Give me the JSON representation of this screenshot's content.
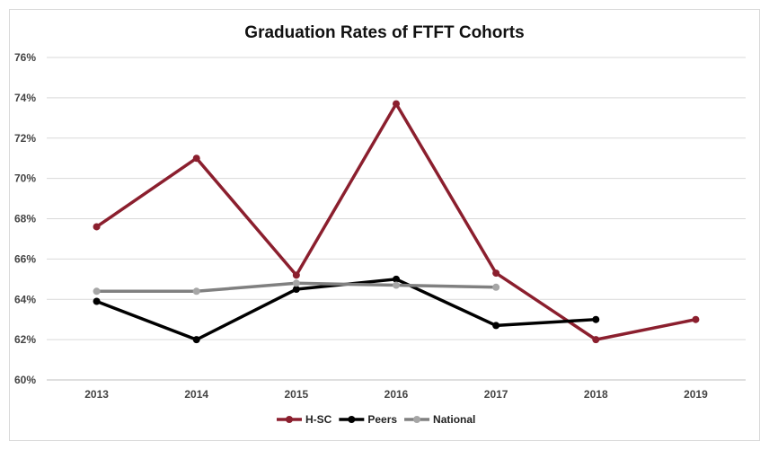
{
  "chart_data": {
    "type": "line",
    "title": "Graduation Rates of FTFT Cohorts",
    "categories": [
      "2013",
      "2014",
      "2015",
      "2016",
      "2017",
      "2018",
      "2019"
    ],
    "ylim": [
      60,
      76
    ],
    "yticks": [
      "60%",
      "62%",
      "64%",
      "66%",
      "68%",
      "70%",
      "72%",
      "74%",
      "76%"
    ],
    "ytick_values": [
      60,
      62,
      64,
      66,
      68,
      70,
      72,
      74,
      76
    ],
    "grid": true,
    "legend_position": "bottom",
    "series": [
      {
        "name": "H-SC",
        "color": "#8b1f2e",
        "values": [
          67.6,
          71.0,
          65.2,
          73.7,
          65.3,
          62.0,
          63.0
        ]
      },
      {
        "name": "Peers",
        "color": "#000000",
        "values": [
          63.9,
          62.0,
          64.5,
          65.0,
          62.7,
          63.0,
          null
        ]
      },
      {
        "name": "National",
        "color": "#a6a6a6",
        "line_color": "#808080",
        "values": [
          64.4,
          64.4,
          64.8,
          64.7,
          64.6,
          null,
          null
        ]
      }
    ]
  }
}
